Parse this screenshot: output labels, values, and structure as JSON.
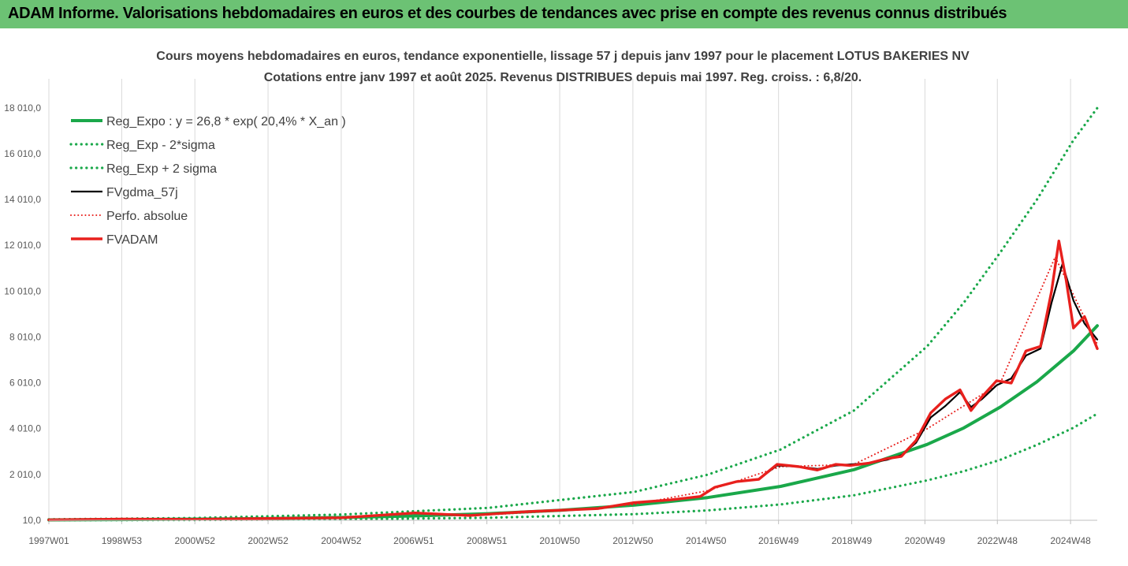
{
  "banner": {
    "text": "ADAM Informe. Valorisations hebdomadaires en euros et des courbes de tendances avec prise en compte des revenus connus distribués"
  },
  "colors": {
    "banner_bg": "#6cc274",
    "reg_expo": "#1aa84a",
    "sigma_lines": "#1aa84a",
    "fvgdma": "#000000",
    "perfo": "#e8201d",
    "fvadam": "#e8201d",
    "gridlines": "#d9d9d9"
  },
  "chart_data": {
    "type": "line",
    "title": [
      "Cours moyens hebdomadaires en euros, tendance exponentielle, lissage 57 j depuis janv 1997 pour le placement LOTUS BAKERIES NV",
      "Cotations entre janv 1997 et août 2025. Revenus DISTRIBUES depuis mai 1997. Reg. croiss. : 6,8/20."
    ],
    "xlabel": "",
    "ylabel": "",
    "x_range": [
      1997.0,
      2025.65
    ],
    "ylim": [
      10,
      19000
    ],
    "y_ticks": [
      10,
      2010,
      4010,
      6010,
      8010,
      10010,
      12010,
      14010,
      16010,
      18010
    ],
    "y_tick_labels": [
      "10,0",
      "2 010,0",
      "4 010,0",
      "6 010,0",
      "8 010,0",
      "10 010,0",
      "12 010,0",
      "14 010,0",
      "16 010,0",
      "18 010,0"
    ],
    "x_ticks": [
      1997.0,
      1998.99,
      2000.99,
      2002.99,
      2004.99,
      2006.97,
      2008.97,
      2010.96,
      2012.96,
      2014.96,
      2016.94,
      2018.94,
      2020.94,
      2022.92,
      2024.92
    ],
    "x_tick_labels": [
      "1997W01",
      "1998W53",
      "2000W52",
      "2002W52",
      "2004W52",
      "2006W51",
      "2008W51",
      "2010W50",
      "2012W50",
      "2014W50",
      "2016W49",
      "2018W49",
      "2020W49",
      "2022W48",
      "2024W48"
    ],
    "grid": "vertical",
    "legend": "top-left",
    "series": [
      {
        "name": "Reg_Expo : y = 26,8 * exp( 20,4% *  X_an )",
        "style": "solid",
        "x": [
          1997,
          1999,
          2001,
          2003,
          2005,
          2007,
          2009,
          2011,
          2013,
          2015,
          2017,
          2019,
          2021,
          2022,
          2023,
          2024,
          2025,
          2025.65
        ],
        "y": [
          27,
          40,
          60,
          90,
          135,
          200,
          300,
          450,
          670,
          1000,
          1490,
          2220,
          3320,
          4040,
          4950,
          6050,
          7400,
          8500
        ]
      },
      {
        "name": "Reg_Exp - 2*sigma",
        "style": "dotted",
        "x": [
          1997,
          2001,
          2005,
          2009,
          2013,
          2015,
          2017,
          2019,
          2021,
          2022,
          2023,
          2024,
          2025,
          2025.65
        ],
        "y": [
          12,
          25,
          55,
          120,
          280,
          440,
          700,
          1100,
          1750,
          2150,
          2650,
          3300,
          4050,
          4660
        ]
      },
      {
        "name": "Reg_Exp + 2 sigma",
        "style": "dotted",
        "x": [
          1997,
          2001,
          2005,
          2009,
          2013,
          2015,
          2017,
          2019,
          2021,
          2022,
          2023,
          2024,
          2025,
          2025.65
        ],
        "y": [
          50,
          110,
          260,
          550,
          1250,
          2000,
          3100,
          4800,
          7600,
          9500,
          11700,
          14000,
          16600,
          18000
        ]
      },
      {
        "name": "FVgdma_57j",
        "style": "solid",
        "x": [
          1997,
          1999,
          2001,
          2003,
          2005,
          2007,
          2008.5,
          2010,
          2011,
          2012,
          2013,
          2014,
          2014.8,
          2015.2,
          2015.8,
          2016.4,
          2016.9,
          2017.5,
          2018,
          2018.5,
          2018.9,
          2019.4,
          2019.9,
          2020.3,
          2020.7,
          2021.1,
          2021.5,
          2021.9,
          2022.2,
          2022.5,
          2022.9,
          2023.3,
          2023.7,
          2024.1,
          2024.4,
          2024.7,
          2025.0,
          2025.3,
          2025.65
        ],
        "y": [
          30,
          60,
          50,
          90,
          120,
          330,
          220,
          380,
          450,
          520,
          780,
          900,
          1050,
          1450,
          1700,
          1800,
          2400,
          2350,
          2250,
          2400,
          2450,
          2500,
          2650,
          2850,
          3400,
          4500,
          5000,
          5600,
          4950,
          5300,
          5900,
          6200,
          7200,
          7500,
          9500,
          11200,
          9600,
          8600,
          7900
        ]
      },
      {
        "name": "Perfo. absolue",
        "style": "dotted",
        "x": [
          1997,
          1999,
          2001,
          2003,
          2005,
          2007,
          2009,
          2011,
          2013,
          2015,
          2017,
          2019,
          2021,
          2023,
          2024.5,
          2025.65
        ],
        "y": [
          30,
          60,
          55,
          100,
          130,
          300,
          250,
          420,
          700,
          1300,
          2350,
          2450,
          4000,
          6000,
          11500,
          7700
        ]
      },
      {
        "name": "FVADAM",
        "style": "solid",
        "x": [
          1997,
          1999,
          2001,
          2003,
          2005,
          2007,
          2008.5,
          2010,
          2011,
          2012,
          2013,
          2014,
          2014.8,
          2015.2,
          2015.8,
          2016.4,
          2016.9,
          2017.5,
          2018,
          2018.5,
          2018.9,
          2019.4,
          2019.9,
          2020.3,
          2020.7,
          2021.1,
          2021.5,
          2021.9,
          2022.2,
          2022.5,
          2022.9,
          2023.3,
          2023.7,
          2024.1,
          2024.4,
          2024.6,
          2024.8,
          2025.0,
          2025.3,
          2025.65
        ],
        "y": [
          30,
          60,
          50,
          90,
          120,
          330,
          220,
          380,
          450,
          520,
          780,
          900,
          1050,
          1450,
          1700,
          1800,
          2450,
          2350,
          2200,
          2450,
          2400,
          2500,
          2700,
          2800,
          3500,
          4700,
          5300,
          5700,
          4800,
          5400,
          6100,
          6000,
          7400,
          7600,
          10000,
          12200,
          10500,
          8400,
          8900,
          7500
        ]
      }
    ]
  }
}
